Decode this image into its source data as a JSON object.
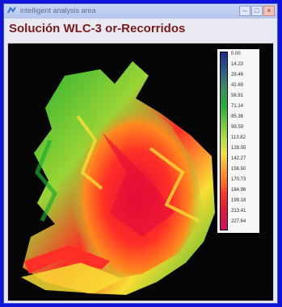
{
  "window": {
    "title": "intelligent analysis area",
    "minimize_glyph": "–",
    "maximize_glyph": "□",
    "close_glyph": "×"
  },
  "page": {
    "heading": "Solución WLC-3 or-Recorridos"
  },
  "legend": {
    "labels": [
      "0.00",
      "14.23",
      "28.46",
      "42.69",
      "56.91",
      "71.14",
      "85.36",
      "99.59",
      "113.82",
      "128.05",
      "142.27",
      "156.50",
      "170.73",
      "184.96",
      "199.18",
      "213.41",
      "227.64"
    ]
  },
  "colors": {
    "frame": "#0f15d8",
    "window_bg": "#e9e9f2",
    "heading": "#7a1b1b",
    "map_bg": "#050505"
  }
}
